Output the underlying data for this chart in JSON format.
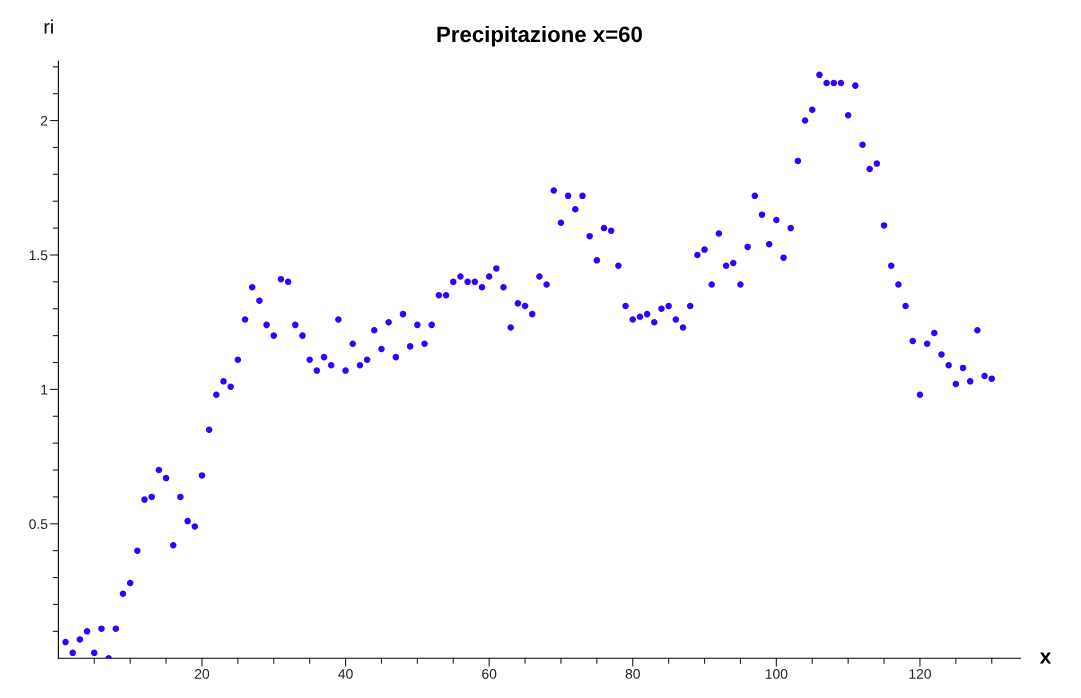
{
  "chart_data": {
    "type": "scatter",
    "title": "Precipitazione x=60",
    "xlabel": "x",
    "ylabel": "ri",
    "marker": "circle",
    "grid": false,
    "x": [
      1,
      2,
      3,
      4,
      5,
      6,
      7,
      8,
      9,
      10,
      11,
      12,
      13,
      14,
      15,
      16,
      17,
      18,
      19,
      20,
      21,
      22,
      23,
      24,
      25,
      26,
      27,
      28,
      29,
      30,
      31,
      32,
      33,
      34,
      35,
      36,
      37,
      38,
      39,
      40,
      41,
      42,
      43,
      44,
      45,
      46,
      47,
      48,
      49,
      50,
      51,
      52,
      53,
      54,
      55,
      56,
      57,
      58,
      59,
      60,
      61,
      62,
      63,
      64,
      65,
      66,
      67,
      68,
      69,
      70,
      71,
      72,
      73,
      74,
      75,
      76,
      77,
      78,
      79,
      80,
      81,
      82,
      83,
      84,
      85,
      86,
      87,
      88,
      89,
      90,
      91,
      92,
      93,
      94,
      95,
      96,
      97,
      98,
      99,
      100,
      101,
      102,
      103,
      104,
      105,
      106,
      107,
      108,
      109,
      110,
      111,
      112,
      113,
      114,
      115,
      116,
      117,
      118,
      119,
      120,
      121,
      122,
      123,
      124,
      125,
      126,
      127,
      128,
      129,
      130
    ],
    "series": [
      {
        "color": "#3300ff",
        "values": [
          0.06,
          0.02,
          0.07,
          0.1,
          0.02,
          0.11,
          0.0,
          0.11,
          0.24,
          0.28,
          0.4,
          0.59,
          0.6,
          0.7,
          0.67,
          0.42,
          0.6,
          0.51,
          0.49,
          0.68,
          0.85,
          0.98,
          1.03,
          1.01,
          1.11,
          1.26,
          1.38,
          1.33,
          1.24,
          1.2,
          1.41,
          1.4,
          1.24,
          1.2,
          1.11,
          1.07,
          1.12,
          1.09,
          1.26,
          1.07,
          1.17,
          1.09,
          1.11,
          1.22,
          1.15,
          1.25,
          1.12,
          1.28,
          1.16,
          1.24,
          1.17,
          1.24,
          1.35,
          1.35,
          1.4,
          1.42,
          1.4,
          1.4,
          1.38,
          1.42,
          1.45,
          1.38,
          1.23,
          1.32,
          1.31,
          1.28,
          1.42,
          1.39,
          1.74,
          1.62,
          1.72,
          1.67,
          1.72,
          1.57,
          1.48,
          1.6,
          1.59,
          1.46,
          1.31,
          1.26,
          1.27,
          1.28,
          1.25,
          1.3,
          1.31,
          1.26,
          1.23,
          1.31,
          1.5,
          1.52,
          1.39,
          1.58,
          1.46,
          1.47,
          1.39,
          1.53,
          1.72,
          1.65,
          1.54,
          1.63,
          1.49,
          1.6,
          1.85,
          2.0,
          2.04,
          2.17,
          2.14,
          2.14,
          2.14,
          2.02,
          2.13,
          1.91,
          1.82,
          1.84,
          1.61,
          1.46,
          1.39,
          1.31,
          1.18,
          0.98,
          1.17,
          1.21,
          1.13,
          1.09,
          1.02,
          1.08,
          1.03,
          1.22,
          1.05,
          1.04
        ]
      }
    ],
    "xlim": [
      0,
      134
    ],
    "ylim": [
      0,
      2.22
    ],
    "xticks": [
      {
        "value": 5,
        "label": null
      },
      {
        "value": 10,
        "label": null
      },
      {
        "value": 15,
        "label": null
      },
      20,
      {
        "value": 25,
        "label": null
      },
      {
        "value": 30,
        "label": null
      },
      {
        "value": 35,
        "label": null
      },
      40,
      {
        "value": 45,
        "label": null
      },
      {
        "value": 50,
        "label": null
      },
      {
        "value": 55,
        "label": null
      },
      60,
      {
        "value": 65,
        "label": null
      },
      {
        "value": 70,
        "label": null
      },
      {
        "value": 75,
        "label": null
      },
      80,
      {
        "value": 85,
        "label": null
      },
      {
        "value": 90,
        "label": null
      },
      {
        "value": 95,
        "label": null
      },
      100,
      {
        "value": 105,
        "label": null
      },
      {
        "value": 110,
        "label": null
      },
      {
        "value": 115,
        "label": null
      },
      120,
      {
        "value": 125,
        "label": null
      },
      {
        "value": 130,
        "label": null
      }
    ],
    "yticks": [
      {
        "value": 0.1,
        "label": null
      },
      {
        "value": 0.2,
        "label": null
      },
      {
        "value": 0.3,
        "label": null
      },
      {
        "value": 0.4,
        "label": null
      },
      0.5,
      {
        "value": 0.6,
        "label": null
      },
      {
        "value": 0.7,
        "label": null
      },
      {
        "value": 0.8,
        "label": null
      },
      {
        "value": 0.9,
        "label": null
      },
      1,
      {
        "value": 1.1,
        "label": null
      },
      {
        "value": 1.2,
        "label": null
      },
      {
        "value": 1.3,
        "label": null
      },
      {
        "value": 1.4,
        "label": null
      },
      1.5,
      {
        "value": 1.6,
        "label": null
      },
      {
        "value": 1.7,
        "label": null
      },
      {
        "value": 1.8,
        "label": null
      },
      {
        "value": 1.9,
        "label": null
      },
      2,
      {
        "value": 2.1,
        "label": null
      },
      {
        "value": 2.2,
        "label": null
      }
    ]
  }
}
